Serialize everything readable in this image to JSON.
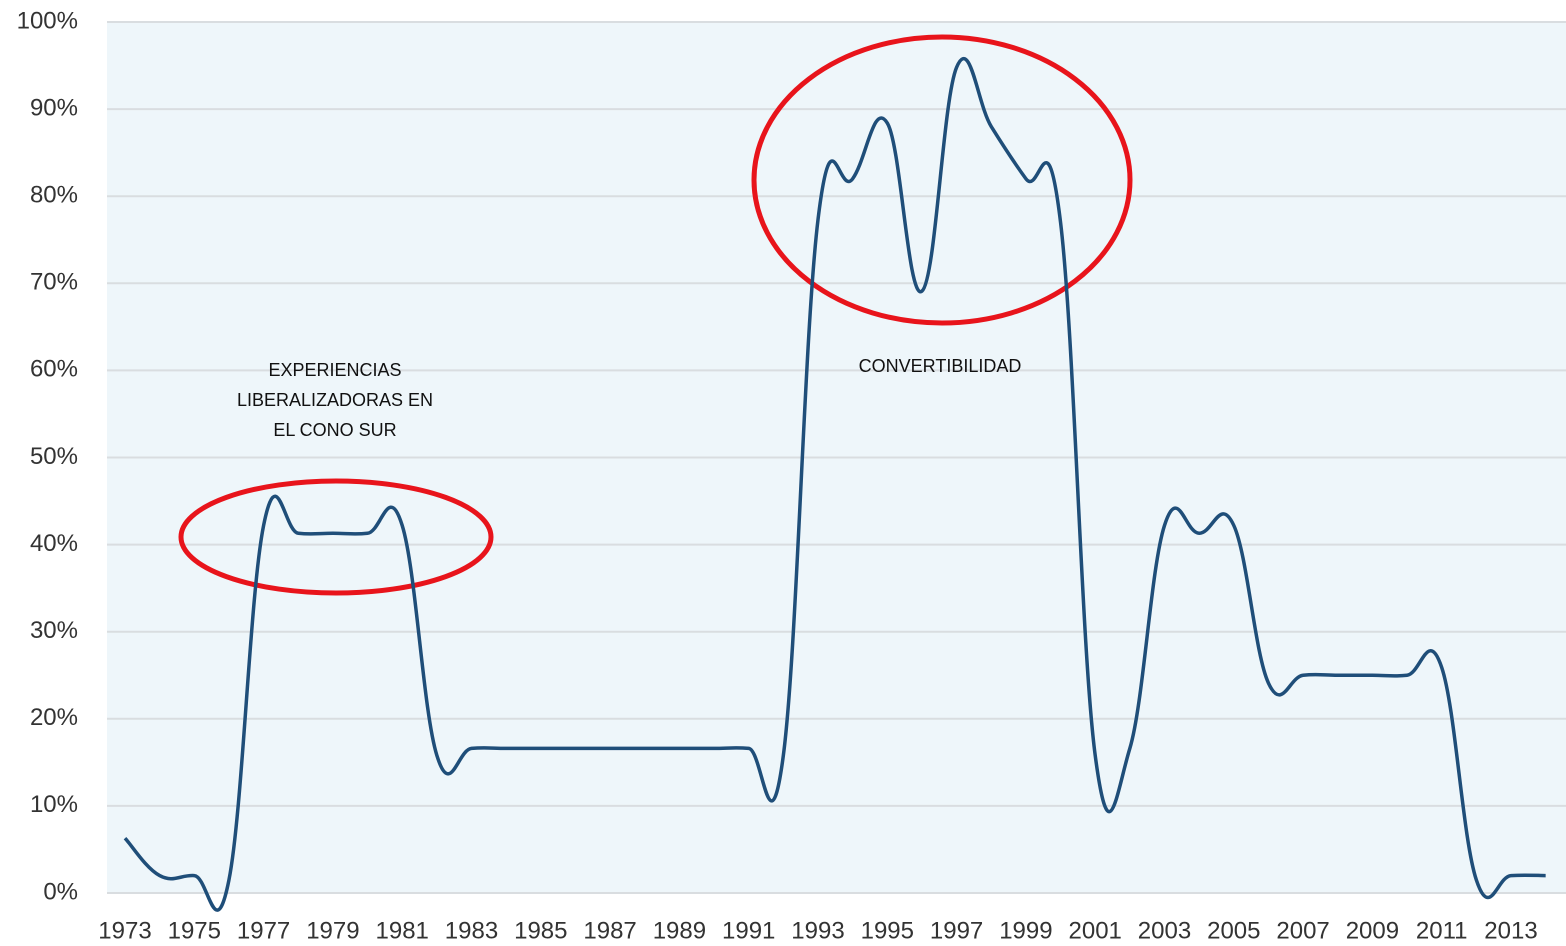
{
  "chart_data": {
    "type": "line",
    "categories": [
      "1973",
      null,
      "1975",
      null,
      "1977",
      null,
      "1979",
      null,
      "1981",
      null,
      "1983",
      null,
      "1985",
      null,
      "1987",
      null,
      "1989",
      null,
      "1991",
      null,
      "1993",
      null,
      "1995",
      null,
      "1997",
      null,
      "1999",
      null,
      "2001",
      null,
      "2003",
      null,
      "2005",
      null,
      "2007",
      null,
      "2009",
      null,
      "2011",
      null,
      "2013",
      null
    ],
    "series": [
      {
        "color": "#1f4e79",
        "values": [
          6.3,
          2,
          2,
          1.5,
          42.2,
          41.3,
          41.3,
          41.3,
          42.2,
          15.8,
          16.6,
          16.6,
          16.6,
          16.6,
          16.6,
          16.6,
          16.6,
          16.6,
          16.6,
          15.8,
          77.3,
          82,
          88.4,
          69.1,
          94.8,
          88,
          82,
          77,
          15.8,
          16.6,
          42.2,
          41.3,
          42.2,
          24.1,
          25,
          25,
          25,
          25,
          25.9,
          1.5,
          2,
          2
        ]
      }
    ],
    "ylim": [
      0,
      100
    ],
    "yticks": [
      {
        "value": 0,
        "label": "0%"
      },
      {
        "value": 10,
        "label": "10%"
      },
      {
        "value": 20,
        "label": "20%"
      },
      {
        "value": 30,
        "label": "30%"
      },
      {
        "value": 40,
        "label": "40%"
      },
      {
        "value": 50,
        "label": "50%"
      },
      {
        "value": 60,
        "label": "60%"
      },
      {
        "value": 70,
        "label": "70%"
      },
      {
        "value": 80,
        "label": "80%"
      },
      {
        "value": 90,
        "label": "90%"
      },
      {
        "value": 100,
        "label": "100%"
      }
    ],
    "grid": true,
    "annotations": [
      {
        "lines": [
          "EXPERIENCIAS",
          "LIBERALIZADORAS EN",
          "EL CONO SUR"
        ]
      },
      {
        "lines": [
          "CONVERTIBILIDAD"
        ]
      }
    ]
  }
}
